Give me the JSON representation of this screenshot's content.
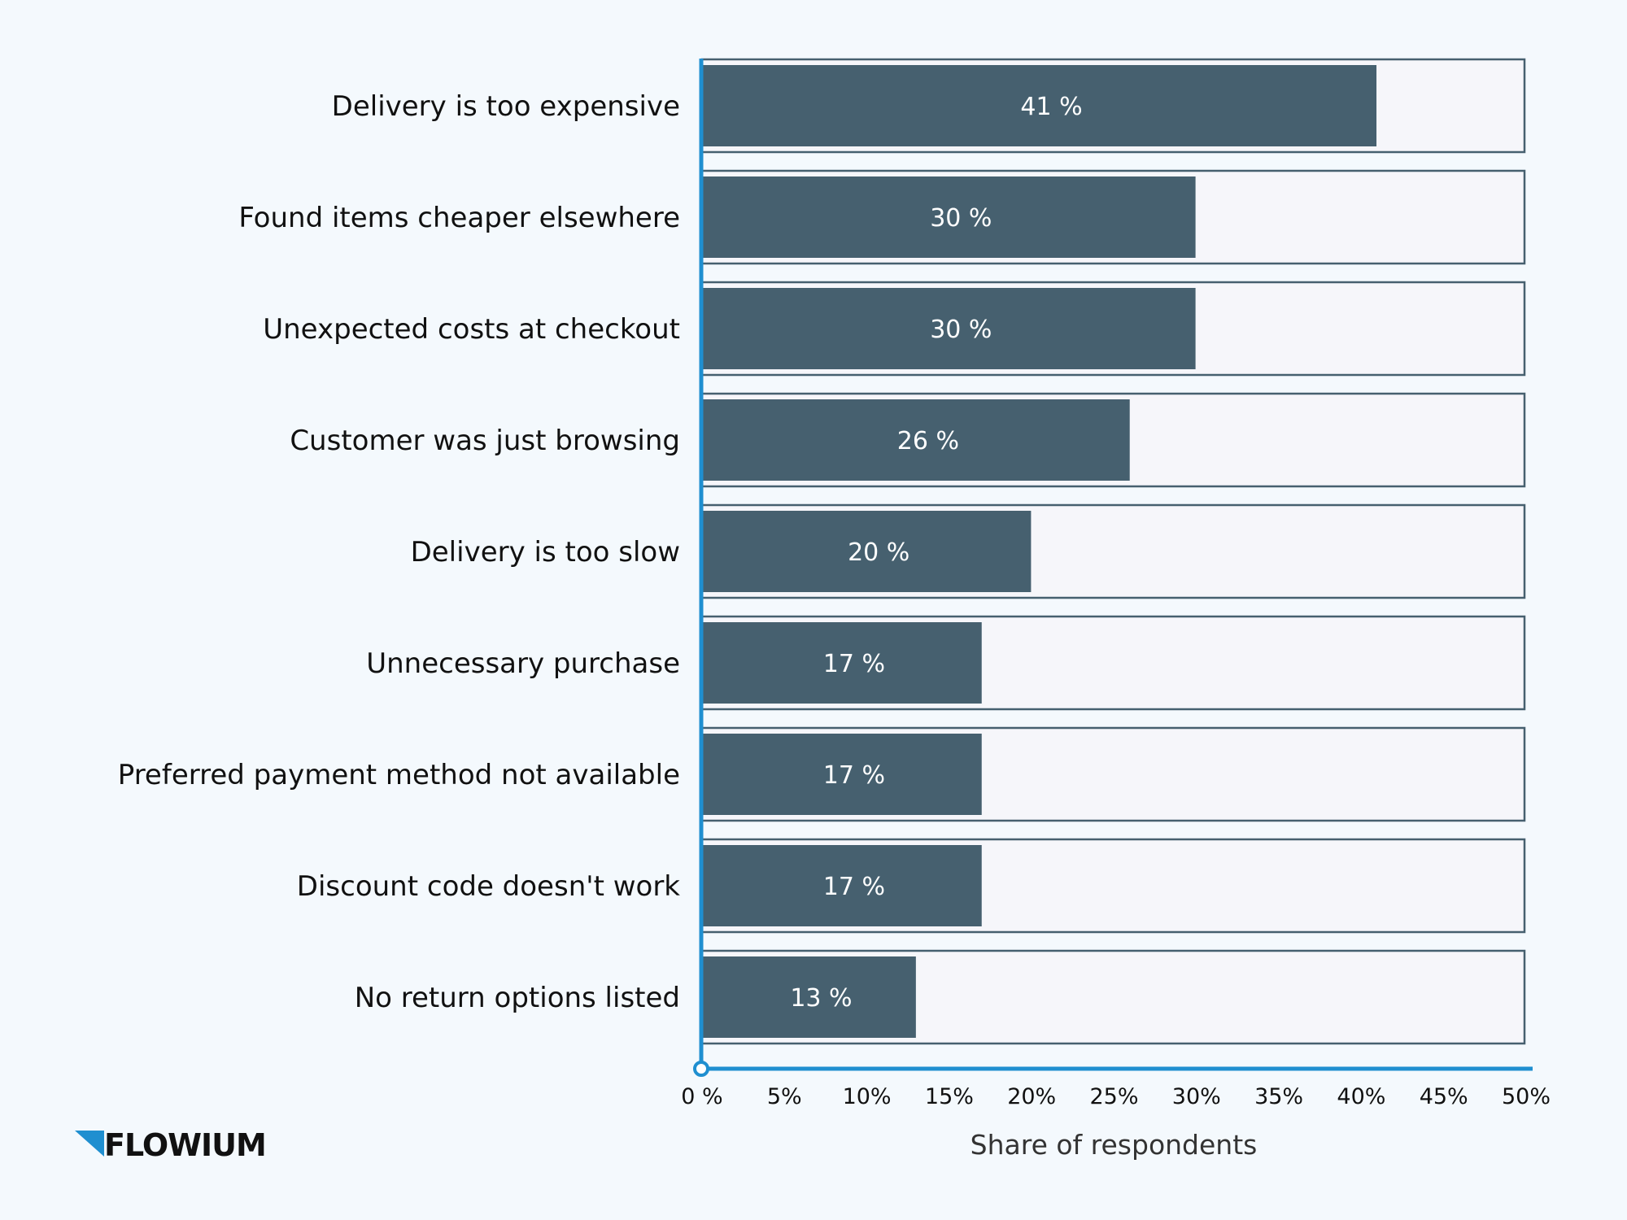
{
  "chart_data": {
    "type": "bar",
    "orientation": "horizontal",
    "categories": [
      "Delivery is too expensive",
      "Found items cheaper elsewhere",
      "Unexpected costs at checkout",
      "Customer was just browsing",
      "Delivery is too slow",
      "Unnecessary purchase",
      "Preferred payment method not available",
      "Discount code doesn't work",
      "No return options listed"
    ],
    "values": [
      41,
      30,
      30,
      26,
      20,
      17,
      17,
      17,
      13
    ],
    "value_labels": [
      "41 %",
      "30 %",
      "30 %",
      "26 %",
      "20 %",
      "17 %",
      "17 %",
      "17 %",
      "13 %"
    ],
    "xlabel": "Share of respondents",
    "xlim": [
      0,
      50
    ],
    "xticks": [
      0,
      5,
      10,
      15,
      20,
      25,
      30,
      35,
      40,
      45,
      50
    ],
    "xtick_labels": [
      "0 %",
      "5%",
      "10%",
      "15%",
      "20%",
      "25%",
      "30%",
      "35%",
      "40%",
      "45%",
      "50%"
    ],
    "grid": false,
    "legend": "none"
  },
  "brand": {
    "name": "FLOWIUM"
  },
  "colors": {
    "background": "#f4f9fd",
    "bar": "#46606f",
    "track_fill": "#f6f6fa",
    "track_border": "#46606f",
    "axis": "#1f8fd0",
    "logo_mark": "#1f8fd0"
  }
}
